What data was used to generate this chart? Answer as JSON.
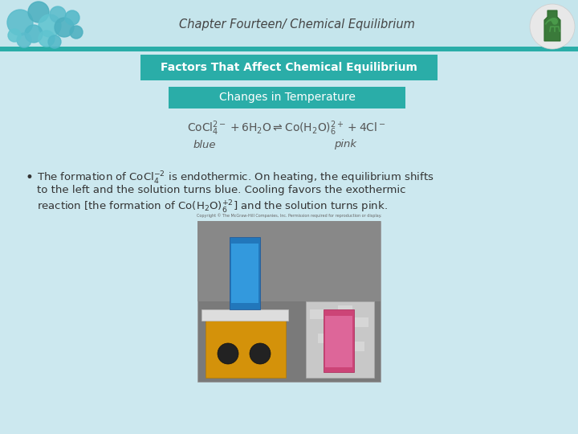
{
  "title": "Chapter Fourteen/ Chemical Equilibrium",
  "header_text_color": "#444444",
  "subtitle1": "Factors That Affect Chemical Equilibrium",
  "subtitle2": "Changes in Temperature",
  "label_blue": "blue",
  "label_pink": "pink",
  "bullet_line1": "The formation of $\\mathrm{CoCl_4^{-2}}$ is endothermic. On heating, the equilibrium shifts",
  "bullet_line2": "to the left and the solution turns blue. Cooling favors the exothermic",
  "bullet_line3": "reaction [the formation of $\\mathrm{Co(H_2O)_6^{+2}}$] and the solution turns pink.",
  "bg_color": "#cce8ef",
  "header_bg": "#c5e5ec",
  "teal_color": "#2aada8",
  "teal_dark": "#1e9490",
  "text_color": "#333333",
  "font_size_title": 10.5,
  "font_size_sub1": 10,
  "font_size_sub2": 10,
  "font_size_body": 9.5,
  "font_size_eq": 10
}
